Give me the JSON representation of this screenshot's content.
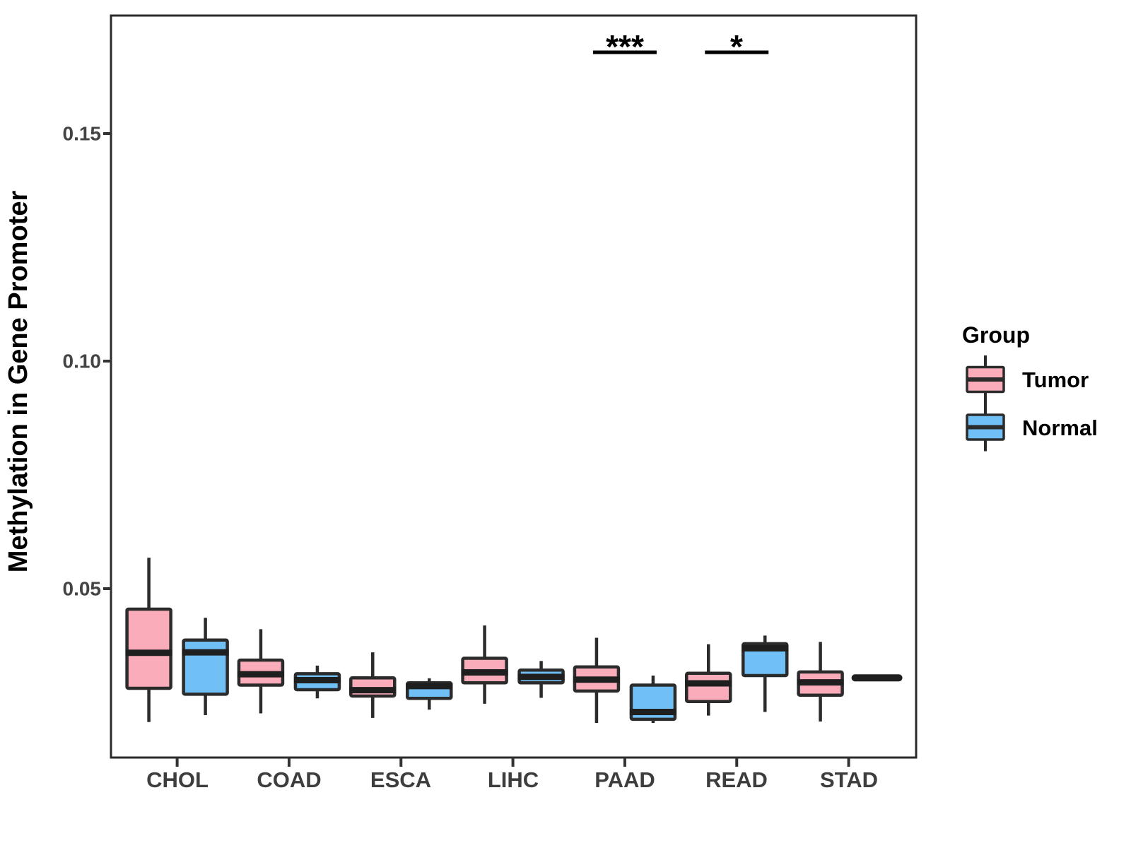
{
  "chart_data": {
    "type": "boxplot",
    "title": "",
    "xlabel": "",
    "ylabel": "Methylation in Gene Promoter",
    "categories": [
      "CHOL",
      "COAD",
      "ESCA",
      "LIHC",
      "PAAD",
      "READ",
      "STAD"
    ],
    "groups": [
      {
        "name": "Tumor",
        "color": "#FAACBB"
      },
      {
        "name": "Normal",
        "color": "#70BFF5"
      }
    ],
    "yticks": {
      "values": [
        0.05,
        0.1,
        0.15
      ],
      "labels": [
        "0.05",
        "0.10",
        "0.15"
      ]
    },
    "ylim": [
      0.013,
      0.176
    ],
    "grid": false,
    "legend": {
      "title": "Group",
      "position": "right",
      "items": [
        {
          "label": "Tumor",
          "color": "#FAACBB"
        },
        {
          "label": "Normal",
          "color": "#70BFF5"
        }
      ]
    },
    "significance": [
      {
        "category": "PAAD",
        "label": "***"
      },
      {
        "category": "READ",
        "label": "*"
      }
    ],
    "boxes": [
      {
        "category": "CHOL",
        "group": "Tumor",
        "min": 0.0207,
        "q1": 0.0281,
        "median": 0.0359,
        "q3": 0.0455,
        "max": 0.0568
      },
      {
        "category": "CHOL",
        "group": "Normal",
        "min": 0.0222,
        "q1": 0.0268,
        "median": 0.036,
        "q3": 0.0387,
        "max": 0.0436
      },
      {
        "category": "COAD",
        "group": "Tumor",
        "min": 0.0226,
        "q1": 0.0288,
        "median": 0.0312,
        "q3": 0.0343,
        "max": 0.0411
      },
      {
        "category": "COAD",
        "group": "Normal",
        "min": 0.0259,
        "q1": 0.0278,
        "median": 0.0299,
        "q3": 0.0313,
        "max": 0.0331
      },
      {
        "category": "ESCA",
        "group": "Tumor",
        "min": 0.0216,
        "q1": 0.0264,
        "median": 0.0277,
        "q3": 0.0304,
        "max": 0.036
      },
      {
        "category": "ESCA",
        "group": "Normal",
        "min": 0.0234,
        "q1": 0.0259,
        "median": 0.0286,
        "q3": 0.0293,
        "max": 0.0303
      },
      {
        "category": "LIHC",
        "group": "Tumor",
        "min": 0.0247,
        "q1": 0.0293,
        "median": 0.0316,
        "q3": 0.0347,
        "max": 0.0419
      },
      {
        "category": "LIHC",
        "group": "Normal",
        "min": 0.026,
        "q1": 0.0293,
        "median": 0.0306,
        "q3": 0.0321,
        "max": 0.0341
      },
      {
        "category": "PAAD",
        "group": "Tumor",
        "min": 0.0205,
        "q1": 0.0275,
        "median": 0.03,
        "q3": 0.0328,
        "max": 0.0392
      },
      {
        "category": "PAAD",
        "group": "Normal",
        "min": 0.0205,
        "q1": 0.0213,
        "median": 0.0229,
        "q3": 0.0288,
        "max": 0.0309
      },
      {
        "category": "READ",
        "group": "Tumor",
        "min": 0.0221,
        "q1": 0.0252,
        "median": 0.0292,
        "q3": 0.0314,
        "max": 0.0378
      },
      {
        "category": "READ",
        "group": "Normal",
        "min": 0.0229,
        "q1": 0.0309,
        "median": 0.0369,
        "q3": 0.0379,
        "max": 0.0397
      },
      {
        "category": "STAD",
        "group": "Tumor",
        "min": 0.0208,
        "q1": 0.0266,
        "median": 0.0294,
        "q3": 0.0317,
        "max": 0.0383
      },
      {
        "category": "STAD",
        "group": "Normal",
        "single_value": 0.0304
      }
    ],
    "style": {
      "box_border_color": "#2b2b2b",
      "median_color": "#1f1f1f",
      "panel_border_color": "#2b2b2b",
      "tick_color": "#333333",
      "sig_line_color": "#000000"
    }
  }
}
